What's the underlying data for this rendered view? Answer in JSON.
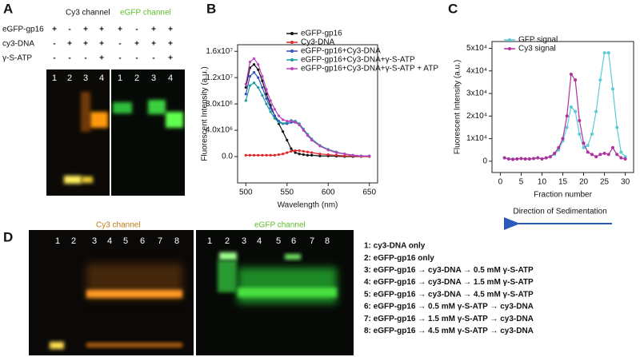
{
  "panel_a": {
    "letter": "A",
    "channels": [
      "Cy3 channel",
      "eGFP channel"
    ],
    "rows": [
      {
        "label": "eGFP-gp16",
        "signs": [
          "+",
          "-",
          "+",
          "+",
          "+",
          "-",
          "+",
          "+"
        ]
      },
      {
        "label": "cy3-DNA",
        "signs": [
          "-",
          "+",
          "+",
          "+",
          "-",
          "+",
          "+",
          "+"
        ]
      },
      {
        "label": "γ-S-ATP",
        "signs": [
          "-",
          "-",
          "-",
          "+",
          "-",
          "-",
          "-",
          "+"
        ]
      }
    ],
    "lanes": [
      "1",
      "2",
      "3",
      "4",
      "1",
      "2",
      "3",
      "4"
    ]
  },
  "chart_data": [
    {
      "type": "line",
      "letter": "B",
      "xlabel": "Wavelength (nm)",
      "ylabel": "Fluorescent Intensity (a.u.)",
      "xlim": [
        490,
        660
      ],
      "xticks": [
        500,
        550,
        600,
        650
      ],
      "ylim": [
        -4000000,
        17000000
      ],
      "yticks": [
        {
          "value": 0,
          "label": "0.0"
        },
        {
          "value": 4000000,
          "label": "4.0x10⁶"
        },
        {
          "value": 8000000,
          "label": "8.0x10⁶"
        },
        {
          "value": 12000000,
          "label": "1.2x10⁷"
        },
        {
          "value": 16000000,
          "label": "1.6x10⁷"
        }
      ],
      "x": [
        500,
        505,
        510,
        515,
        520,
        525,
        530,
        535,
        540,
        545,
        550,
        555,
        560,
        565,
        570,
        575,
        580,
        590,
        600,
        610,
        620,
        630,
        640,
        650
      ],
      "series": [
        {
          "name": "eGFP-gp16",
          "color": "#111111",
          "values": [
            10500000,
            13500000,
            14000000,
            13200000,
            11500000,
            9500000,
            7800000,
            6200000,
            5000000,
            3800000,
            2500000,
            1200000,
            600000,
            400000,
            300000,
            200000,
            200000,
            100000,
            100000,
            50000,
            0,
            0,
            0,
            0
          ]
        },
        {
          "name": "Cy3-DNA",
          "color": "#e02828",
          "values": [
            200000,
            200000,
            200000,
            200000,
            200000,
            200000,
            200000,
            200000,
            300000,
            400000,
            600000,
            800000,
            900000,
            900000,
            800000,
            700000,
            600000,
            400000,
            300000,
            200000,
            100000,
            100000,
            0,
            0
          ]
        },
        {
          "name": "eGFP-gp16+Cy3-DNA",
          "color": "#3050c0",
          "values": [
            9500000,
            12200000,
            12800000,
            12000000,
            10500000,
            8800000,
            7400000,
            6200000,
            5400000,
            5000000,
            5000000,
            5200000,
            5200000,
            4800000,
            4000000,
            3200000,
            2500000,
            1600000,
            1000000,
            600000,
            400000,
            200000,
            100000,
            100000
          ]
        },
        {
          "name": "eGFP-gp16+Cy3-DNA+γ-S-ATP",
          "color": "#1f9a9a",
          "values": [
            8500000,
            10800000,
            11200000,
            10500000,
            9300000,
            8000000,
            6800000,
            5800000,
            5200000,
            5000000,
            5200000,
            5500000,
            5400000,
            5000000,
            4200000,
            3400000,
            2700000,
            1700000,
            1100000,
            700000,
            400000,
            200000,
            100000,
            100000
          ]
        },
        {
          "name": "eGFP-gp16+Cy3-DNA+γ-S-ATP + ATP",
          "color": "#c040c0",
          "values": [
            11000000,
            14400000,
            14900000,
            14000000,
            12200000,
            10200000,
            8500000,
            7200000,
            6200000,
            5600000,
            5400000,
            5400000,
            5200000,
            4800000,
            4000000,
            3200000,
            2500000,
            1600000,
            1000000,
            600000,
            400000,
            200000,
            100000,
            100000
          ]
        }
      ]
    },
    {
      "type": "line",
      "letter": "C",
      "xlabel": "Fraction number",
      "ylabel": "Fluorescent Intensity (a.u.)",
      "note": "Direction of Sedimentation",
      "xlim": [
        -2,
        32
      ],
      "xticks": [
        0,
        5,
        10,
        15,
        20,
        25,
        30
      ],
      "ylim": [
        -5000,
        53000
      ],
      "yticks": [
        0,
        {
          "value": 10000,
          "label": "1x10⁴"
        },
        {
          "value": 20000,
          "label": "2x10⁴"
        },
        {
          "value": 30000,
          "label": "3x10⁴"
        },
        {
          "value": 40000,
          "label": "4x10⁴"
        },
        {
          "value": 50000,
          "label": "5x10⁴"
        }
      ],
      "x": [
        1,
        2,
        3,
        4,
        5,
        6,
        7,
        8,
        9,
        10,
        11,
        12,
        13,
        14,
        15,
        16,
        17,
        18,
        19,
        20,
        21,
        22,
        23,
        24,
        25,
        26,
        27,
        28,
        29,
        30
      ],
      "series": [
        {
          "name": "GFP signal",
          "color": "#5ccbd6",
          "values": [
            1500,
            1000,
            1000,
            1000,
            1200,
            1000,
            1000,
            1200,
            1500,
            1000,
            1500,
            2000,
            3000,
            5000,
            9000,
            15000,
            24000,
            22000,
            12000,
            6000,
            7000,
            12000,
            22000,
            36000,
            48000,
            48000,
            32000,
            15000,
            4000,
            2000
          ]
        },
        {
          "name": "Cy3 signal",
          "color": "#b0309e",
          "values": [
            1500,
            1000,
            800,
            1000,
            1200,
            1000,
            1000,
            1200,
            1500,
            1000,
            1500,
            2000,
            3500,
            6000,
            10000,
            20000,
            38500,
            36000,
            18000,
            8000,
            4000,
            3000,
            2000,
            3000,
            3500,
            3000,
            6000,
            3000,
            1500,
            1000
          ]
        }
      ]
    }
  ],
  "panel_d": {
    "letter": "D",
    "channels": [
      "Cy3 channel",
      "eGFP channel"
    ],
    "lanes": [
      "1",
      "2",
      "3",
      "4",
      "5",
      "6",
      "7",
      "8"
    ],
    "legend": [
      "1: cy3-DNA only",
      "2: eGFP-gp16 only",
      "3: eGFP-gp16 → cy3-DNA → 0.5 mM γ-S-ATP",
      "4: eGFP-gp16 → cy3-DNA → 1.5 mM γ-S-ATP",
      "5: eGFP-gp16 → cy3-DNA → 4.5 mM γ-S-ATP",
      "6: eGFP-gp16 → 0.5 mM γ-S-ATP → cy3-DNA",
      "7: eGFP-gp16 → 1.5 mM γ-S-ATP → cy3-DNA",
      "8: eGFP-gp16 → 4.5 mM γ-S-ATP → cy3-DNA"
    ]
  }
}
